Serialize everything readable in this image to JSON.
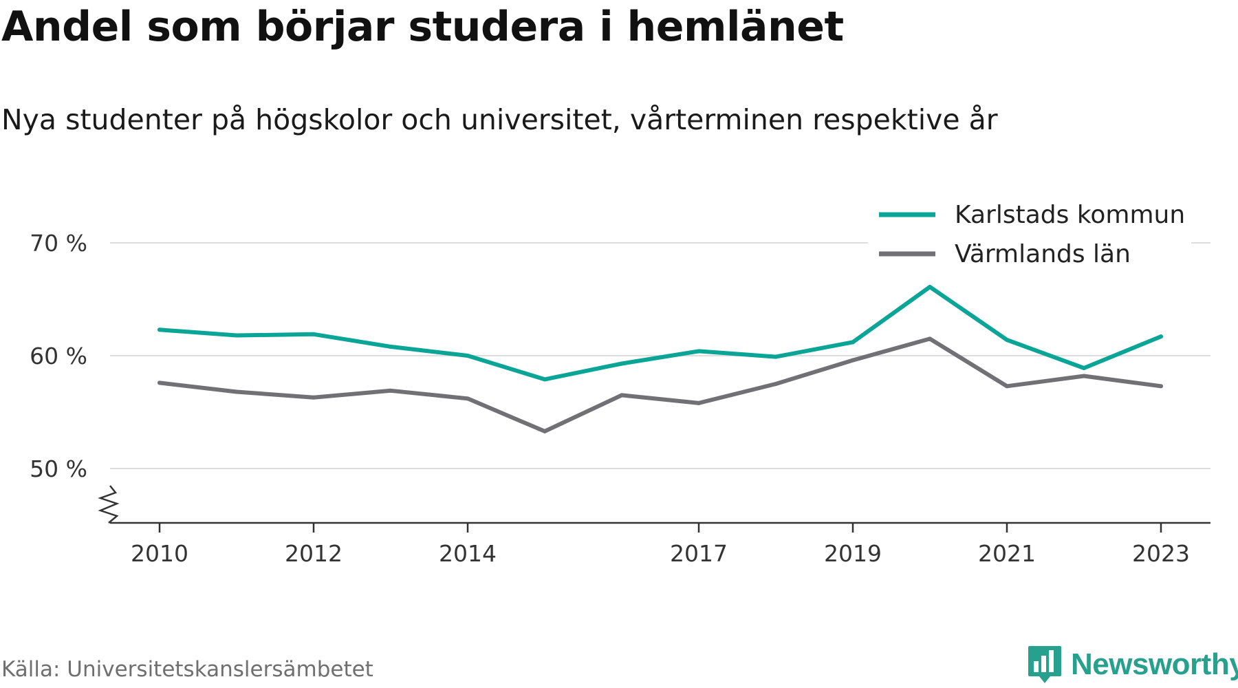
{
  "title": "Andel som börjar studera i hemlänet",
  "subtitle": "Nya studenter på högskolor och universitet, vårterminen respektive år",
  "source": "Källa: Universitetskanslersämbetet",
  "brand": "Newsworthy",
  "colors": {
    "karlstad": "#0aa596",
    "varmland": "#717075",
    "grid": "#dddddd",
    "axis": "#333333",
    "brand": "#27a08e"
  },
  "chart_data": {
    "type": "line",
    "x": [
      2010,
      2011,
      2012,
      2013,
      2014,
      2015,
      2016,
      2017,
      2018,
      2019,
      2020,
      2021,
      2022,
      2023
    ],
    "x_tick_labels": [
      "2010",
      "2012",
      "2014",
      "2017",
      "2019",
      "2021",
      "2023"
    ],
    "y_tick_values": [
      50,
      60,
      70
    ],
    "y_tick_labels": [
      "50 %",
      "60 %",
      "70 %"
    ],
    "ylim": [
      45,
      70
    ],
    "y_axis_break": true,
    "grid": true,
    "legend_position": "top-right",
    "series": [
      {
        "name": "Karlstads kommun",
        "color": "#0aa596",
        "values": [
          62.3,
          61.8,
          61.9,
          60.8,
          60.0,
          57.9,
          59.3,
          60.4,
          59.9,
          61.2,
          66.1,
          61.4,
          58.9,
          61.7
        ]
      },
      {
        "name": "Värmlands län",
        "color": "#717075",
        "values": [
          57.6,
          56.8,
          56.3,
          56.9,
          56.2,
          53.3,
          56.5,
          55.8,
          57.5,
          59.6,
          61.5,
          57.3,
          58.2,
          57.3
        ]
      }
    ]
  }
}
